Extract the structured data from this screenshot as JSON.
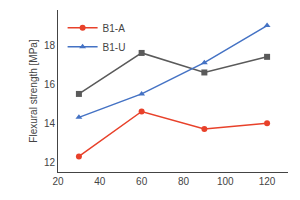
{
  "chart_data": {
    "type": "line",
    "y_label": "Flexural strength [MPa]",
    "x": [
      30,
      60,
      90,
      120
    ],
    "series": [
      {
        "color": "#5a5a5a",
        "marker": "square",
        "values": [
          15.5,
          17.6,
          16.6,
          17.4
        ]
      },
      {
        "name": "B1-A",
        "color": "#e8412a",
        "marker": "circle",
        "values": [
          12.3,
          14.6,
          13.7,
          14.0
        ]
      },
      {
        "name": "B1-U",
        "color": "#4472c4",
        "marker": "triangle-up",
        "values": [
          14.3,
          15.5,
          17.1,
          19.0
        ]
      }
    ],
    "xlim": [
      20,
      130
    ],
    "ylim": [
      11.5,
      19.8
    ],
    "xticks": [
      20,
      40,
      60,
      80,
      100,
      120
    ],
    "yticks": [
      12,
      14,
      16,
      18
    ],
    "grid": false,
    "legend": "upper left"
  }
}
